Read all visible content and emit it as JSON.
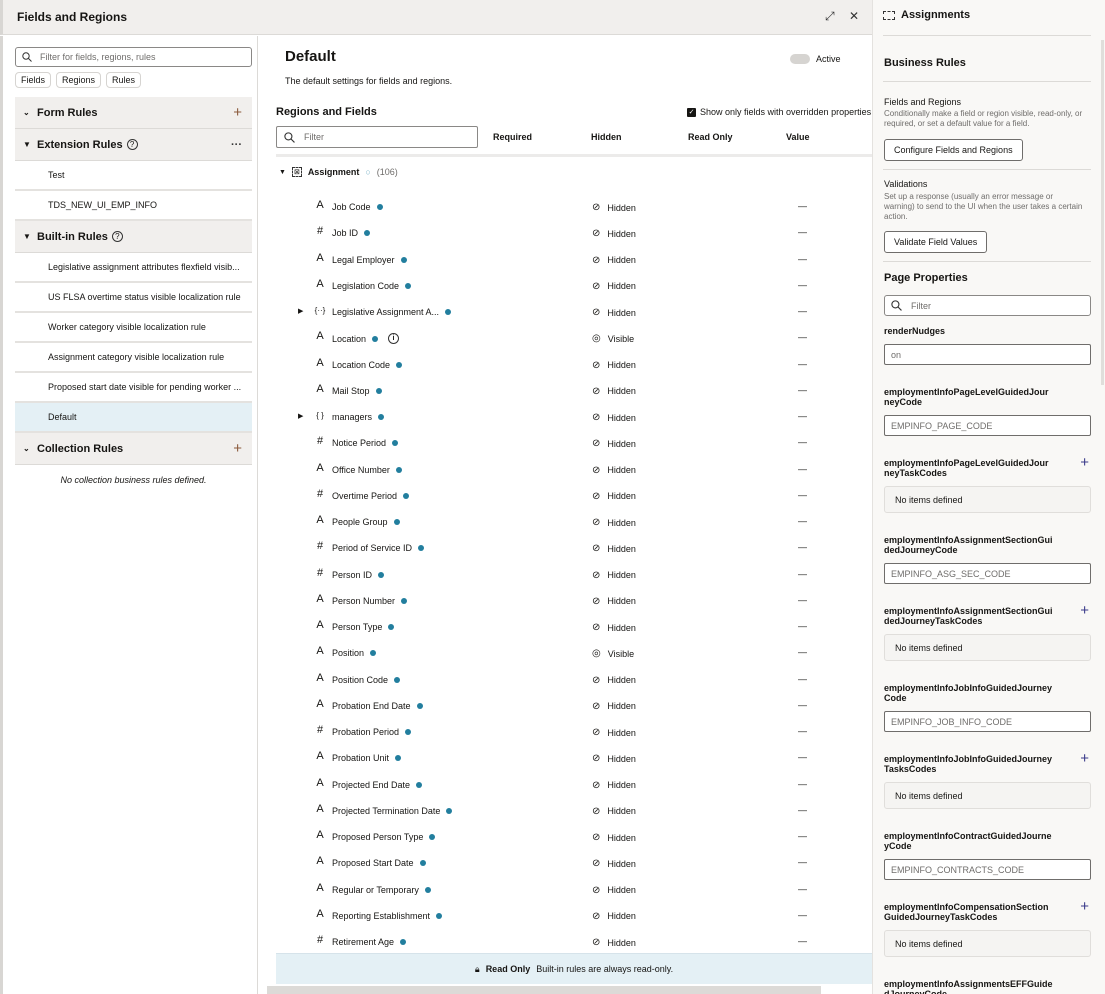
{
  "window": {
    "title": "Fields and Regions",
    "expand_icon": "expand-icon",
    "close_icon": "close-icon"
  },
  "left": {
    "search_placeholder": "Filter for fields, regions, rules",
    "chips": [
      "Fields",
      "Regions",
      "Rules"
    ],
    "form_rules": "Form Rules",
    "extension_rules": "Extension Rules",
    "extension_items": [
      "Test",
      "TDS_NEW_UI_EMP_INFO"
    ],
    "builtin_rules": "Built-in Rules",
    "builtin_items": [
      "Legislative assignment attributes flexfield visib...",
      "US FLSA overtime status visible localization rule",
      "Worker category visible localization rule",
      "Assignment category visible localization rule",
      "Proposed start date visible for pending worker ...",
      "Default"
    ],
    "selected": "Default",
    "collection_rules": "Collection Rules",
    "collection_empty": "No collection business rules defined."
  },
  "main": {
    "title": "Default",
    "description": "The default settings for fields and regions.",
    "active_label": "Active",
    "active": false,
    "section_title": "Regions and Fields",
    "show_only_label": "Show only fields with overridden properties",
    "show_only_checked": true,
    "filter_placeholder": "Filter",
    "columns": [
      "Required",
      "Hidden",
      "Read Only",
      "Value"
    ],
    "group": {
      "name": "Assignment",
      "count": "(106)"
    },
    "rows": [
      {
        "type": "text",
        "name": "Job Code",
        "hidden": "Hidden",
        "value": "—"
      },
      {
        "type": "number",
        "name": "Job ID",
        "hidden": "Hidden",
        "value": "—"
      },
      {
        "type": "text",
        "name": "Legal Employer",
        "hidden": "Hidden",
        "value": "—"
      },
      {
        "type": "text",
        "name": "Legislation Code",
        "hidden": "Hidden",
        "value": "—"
      },
      {
        "type": "object",
        "name": "Legislative Assignment A...",
        "hidden": "Hidden",
        "value": "—",
        "expandable": true
      },
      {
        "type": "text",
        "name": "Location",
        "hidden": "Visible",
        "value": "—",
        "info": true
      },
      {
        "type": "text",
        "name": "Location Code",
        "hidden": "Hidden",
        "value": "—"
      },
      {
        "type": "text",
        "name": "Mail Stop",
        "hidden": "Hidden",
        "value": "—"
      },
      {
        "type": "collection",
        "name": "managers",
        "hidden": "Hidden",
        "value": "—",
        "expandable": true
      },
      {
        "type": "number",
        "name": "Notice Period",
        "hidden": "Hidden",
        "value": "—"
      },
      {
        "type": "text",
        "name": "Office Number",
        "hidden": "Hidden",
        "value": "—"
      },
      {
        "type": "number",
        "name": "Overtime Period",
        "hidden": "Hidden",
        "value": "—"
      },
      {
        "type": "text",
        "name": "People Group",
        "hidden": "Hidden",
        "value": "—"
      },
      {
        "type": "number",
        "name": "Period of Service ID",
        "hidden": "Hidden",
        "value": "—"
      },
      {
        "type": "number",
        "name": "Person ID",
        "hidden": "Hidden",
        "value": "—"
      },
      {
        "type": "text",
        "name": "Person Number",
        "hidden": "Hidden",
        "value": "—"
      },
      {
        "type": "text",
        "name": "Person Type",
        "hidden": "Hidden",
        "value": "—"
      },
      {
        "type": "text",
        "name": "Position",
        "hidden": "Visible",
        "value": "—"
      },
      {
        "type": "text",
        "name": "Position Code",
        "hidden": "Hidden",
        "value": "—"
      },
      {
        "type": "text",
        "name": "Probation End Date",
        "hidden": "Hidden",
        "value": "—"
      },
      {
        "type": "number",
        "name": "Probation Period",
        "hidden": "Hidden",
        "value": "—"
      },
      {
        "type": "text",
        "name": "Probation Unit",
        "hidden": "Hidden",
        "value": "—"
      },
      {
        "type": "text",
        "name": "Projected End Date",
        "hidden": "Hidden",
        "value": "—"
      },
      {
        "type": "text",
        "name": "Projected Termination Date",
        "hidden": "Hidden",
        "value": "—"
      },
      {
        "type": "text",
        "name": "Proposed Person Type",
        "hidden": "Hidden",
        "value": "—"
      },
      {
        "type": "text",
        "name": "Proposed Start Date",
        "hidden": "Hidden",
        "value": "—"
      },
      {
        "type": "text",
        "name": "Regular or Temporary",
        "hidden": "Hidden",
        "value": "—"
      },
      {
        "type": "text",
        "name": "Reporting Establishment",
        "hidden": "Hidden",
        "value": "—"
      },
      {
        "type": "number",
        "name": "Retirement Age",
        "hidden": "Hidden",
        "value": "—"
      }
    ],
    "readonly_title": "Read Only",
    "readonly_text": "Built-in rules are always read-only."
  },
  "right": {
    "title": "Assignments",
    "business_rules": "Business Rules",
    "fr_title": "Fields and Regions",
    "fr_desc": "Conditionally make a field or region visible, read-only, or required, or set a default value for a field.",
    "fr_button": "Configure Fields and Regions",
    "val_title": "Validations",
    "val_desc": "Set up a response (usually an error message or warning) to send to the UI when the user takes a certain action.",
    "val_button": "Validate Field Values",
    "page_properties": "Page Properties",
    "filter_placeholder": "Filter",
    "props": [
      {
        "label": "renderNudges",
        "kind": "input",
        "value": "on"
      },
      {
        "label": "employmentInfoPageLevelGuidedJourneyCode",
        "kind": "input",
        "value": "EMPINFO_PAGE_CODE"
      },
      {
        "label": "employmentInfoPageLevelGuidedJourneyTaskCodes",
        "kind": "list",
        "value": "No items defined"
      },
      {
        "label": "employmentInfoAssignmentSectionGuidedJourneyCode",
        "kind": "input",
        "value": "EMPINFO_ASG_SEC_CODE"
      },
      {
        "label": "employmentInfoAssignmentSectionGuidedJourneyTaskCodes",
        "kind": "list",
        "value": "No items defined"
      },
      {
        "label": "employmentInfoJobInfoGuidedJourneyCode",
        "kind": "input",
        "value": "EMPINFO_JOB_INFO_CODE"
      },
      {
        "label": "employmentInfoJobInfoGuidedJourneyTasksCodes",
        "kind": "list",
        "value": "No items defined"
      },
      {
        "label": "employmentInfoContractGuidedJourneyCode",
        "kind": "input",
        "value": "EMPINFO_CONTRACTS_CODE"
      },
      {
        "label": "employmentInfoCompensationSectionGuidedJourneyTaskCodes",
        "kind": "list",
        "value": "No items defined"
      },
      {
        "label": "employmentInfoAssignmentsEFFGuidedJourneyCode",
        "kind": "input",
        "value": ""
      }
    ]
  },
  "colors": {
    "accent_dot": "#227e9e",
    "selected_bg": "#e4f0f5",
    "header_bg": "#f1efed"
  }
}
